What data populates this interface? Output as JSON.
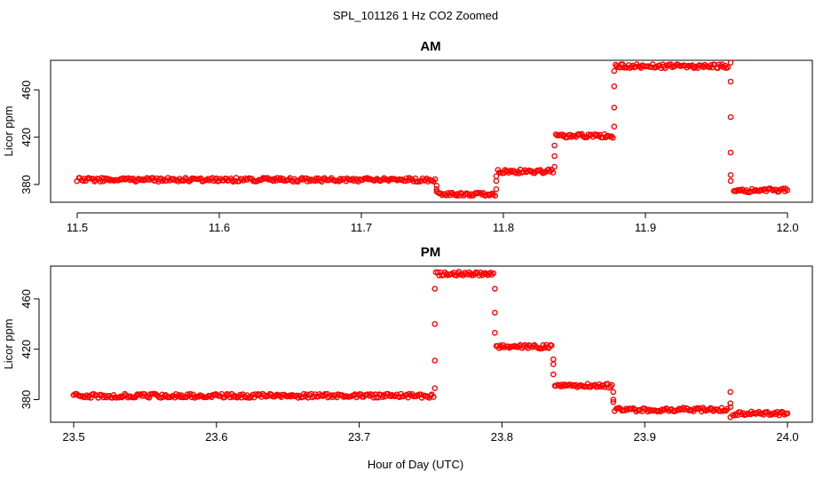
{
  "chart_data": {
    "type": "scatter",
    "title": "SPL_101126  1 Hz CO2 Zoomed",
    "xlabel": "Hour of Day (UTC)",
    "point_color": "#ff0000",
    "panels": [
      {
        "title": "AM",
        "ylabel": "Licor ppm",
        "xlim": [
          11.5,
          12.0
        ],
        "ylim": [
          365,
          485
        ],
        "xticks": [
          11.5,
          11.6,
          11.7,
          11.8,
          11.9,
          12.0
        ],
        "xtick_labels": [
          "11.5",
          "11.6",
          "11.7",
          "11.8",
          "11.9",
          "12.0"
        ],
        "yticks": [
          380,
          420,
          460
        ],
        "ytick_labels": [
          "380",
          "420",
          "460"
        ],
        "segments": [
          {
            "x_start": 11.5,
            "x_end": 11.752,
            "y": 384
          },
          {
            "x_start": 11.754,
            "x_end": 11.794,
            "y": 372
          },
          {
            "x_start": 11.796,
            "x_end": 11.835,
            "y": 391
          },
          {
            "x_start": 11.837,
            "x_end": 11.877,
            "y": 421
          },
          {
            "x_start": 11.879,
            "x_end": 11.958,
            "y": 480
          },
          {
            "x_start": 11.962,
            "x_end": 12.0,
            "y": 375
          }
        ],
        "transitions": [
          {
            "x": 11.753,
            "y": [
              379,
              376,
              374
            ]
          },
          {
            "x": 11.795,
            "y": [
              376,
              383,
              387
            ]
          },
          {
            "x": 11.836,
            "y": [
              395,
              404,
              413
            ]
          },
          {
            "x": 11.878,
            "y": [
              429,
              445,
              463,
              476
            ]
          },
          {
            "x": 11.96,
            "y": [
              483,
              467,
              437,
              407,
              388,
              383
            ]
          }
        ]
      },
      {
        "title": "PM",
        "ylabel": "Licor ppm",
        "xlim": [
          23.5,
          24.0
        ],
        "ylim": [
          362,
          486
        ],
        "xticks": [
          23.5,
          23.6,
          23.7,
          23.8,
          23.9,
          24.0
        ],
        "xtick_labels": [
          "23.5",
          "23.6",
          "23.7",
          "23.8",
          "23.9",
          "24.0"
        ],
        "yticks": [
          380,
          420,
          460
        ],
        "ytick_labels": [
          "380",
          "420",
          "460"
        ],
        "segments": [
          {
            "x_start": 23.5,
            "x_end": 23.752,
            "y": 383
          },
          {
            "x_start": 23.754,
            "x_end": 23.794,
            "y": 480
          },
          {
            "x_start": 23.796,
            "x_end": 23.835,
            "y": 422
          },
          {
            "x_start": 23.837,
            "x_end": 23.877,
            "y": 391
          },
          {
            "x_start": 23.879,
            "x_end": 23.958,
            "y": 372
          },
          {
            "x_start": 23.962,
            "x_end": 24.0,
            "y": 369
          }
        ],
        "transitions": [
          {
            "x": 23.753,
            "y": [
              389,
              411,
              440,
              468
            ]
          },
          {
            "x": 23.795,
            "y": [
              468,
              449,
              433
            ]
          },
          {
            "x": 23.836,
            "y": [
              412,
              408,
              400
            ]
          },
          {
            "x": 23.878,
            "y": [
              386,
              380,
              378
            ]
          },
          {
            "x": 23.96,
            "y": [
              366,
              386,
              377,
              374
            ]
          }
        ]
      }
    ]
  }
}
